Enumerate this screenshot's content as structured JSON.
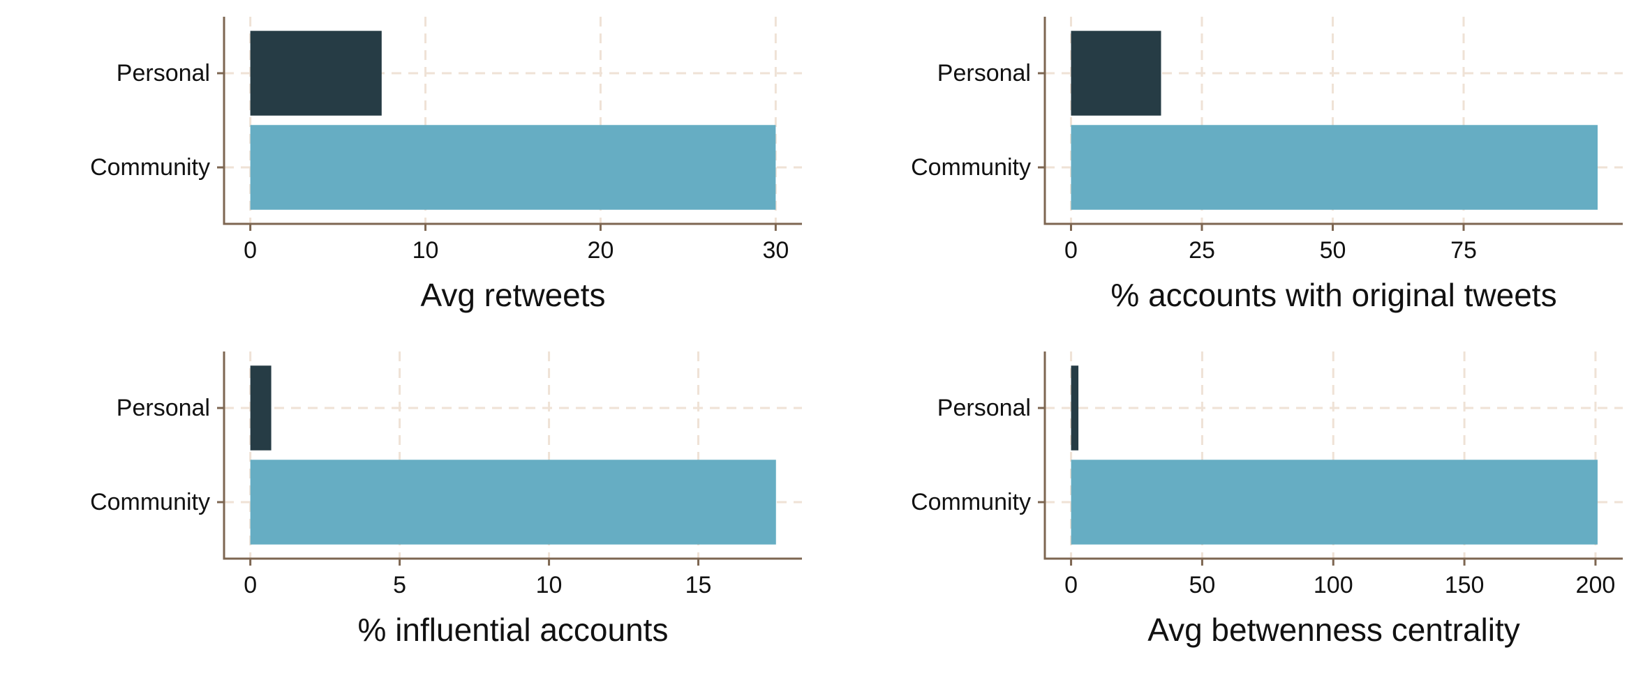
{
  "chart_data": [
    {
      "type": "bar",
      "orientation": "horizontal",
      "xlabel": "Avg retweets",
      "categories": [
        "Personal",
        "Community"
      ],
      "values": [
        7.5,
        30
      ],
      "colors": [
        "#263c45",
        "#66adc3"
      ],
      "xlim": [
        -1.5,
        31.5
      ],
      "xticks": [
        0,
        10,
        20,
        30
      ],
      "grid": true
    },
    {
      "type": "bar",
      "orientation": "horizontal",
      "xlabel": "% accounts with original tweets",
      "categories": [
        "Personal",
        "Community"
      ],
      "values": [
        17.2,
        100.6
      ],
      "colors": [
        "#263c45",
        "#66adc3"
      ],
      "xlim": [
        -5,
        105.4
      ],
      "xticks": [
        0,
        25,
        50,
        75
      ],
      "grid": true
    },
    {
      "type": "bar",
      "orientation": "horizontal",
      "xlabel": "% influential accounts",
      "categories": [
        "Personal",
        "Community"
      ],
      "values": [
        0.7,
        17.6
      ],
      "colors": [
        "#263c45",
        "#66adc3"
      ],
      "xlim": [
        -0.88,
        18.47
      ],
      "xticks": [
        0,
        5,
        10,
        15
      ],
      "grid": true
    },
    {
      "type": "bar",
      "orientation": "horizontal",
      "xlabel": "Avg betwenness centrality",
      "categories": [
        "Personal",
        "Community"
      ],
      "values": [
        2.8,
        200.8
      ],
      "colors": [
        "#263c45",
        "#66adc3"
      ],
      "xlim": [
        -10,
        210.4
      ],
      "xticks": [
        0,
        50,
        100,
        150,
        200
      ],
      "grid": true
    }
  ]
}
